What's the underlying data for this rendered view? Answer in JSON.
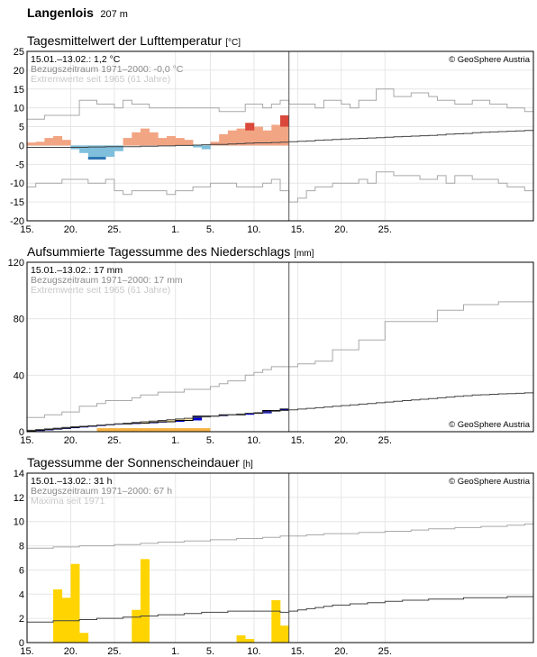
{
  "header": {
    "station": "Langenlois",
    "altitude": "207 m"
  },
  "charts": [
    {
      "title": "Tagesmittelwert der Lufttemperatur",
      "unit": "[°C]",
      "summary": "15.01.–13.02.: 1,2 °C",
      "reference": "Bezugszeitraum 1971–2000: -0,0 °C",
      "extremes": "Extremwerte seit 1965 (61 Jahre)",
      "copyright": "© GeoSphere Austria"
    },
    {
      "title": "Aufsummierte Tagessumme des Niederschlags",
      "unit": "[mm]",
      "summary": "15.01.–13.02.: 17 mm",
      "reference": "Bezugszeitraum 1971–2000: 17 mm",
      "extremes": "Extremwerte seit 1965 (61 Jahre)",
      "copyright": "© GeoSphere Austria"
    },
    {
      "title": "Tagessumme der Sonnenscheindauer",
      "unit": "[h]",
      "summary": "15.01.–13.02.: 31 h",
      "reference": "Bezugszeitraum 1971–2000: 67 h",
      "extremes": "Maxima seit 1971",
      "copyright": "© GeoSphere Austria"
    }
  ],
  "chart_data": [
    {
      "type": "bar",
      "title": "Tagesmittelwert der Lufttemperatur",
      "ylabel": "°C",
      "ylim": [
        -20,
        25
      ],
      "yticks": [
        -20,
        -15,
        -10,
        -5,
        0,
        5,
        10,
        15,
        20,
        25
      ],
      "xlim": [
        "15.01.",
        "14.03."
      ],
      "xticks": [
        "15.",
        "20.",
        "25.",
        "1.",
        "5.",
        "10.",
        "15.",
        "20.",
        "25."
      ],
      "grid": true,
      "today_marker": "14.02.",
      "observed_dates": [
        "15.01.",
        "16.01.",
        "17.01.",
        "18.01.",
        "19.01.",
        "20.01.",
        "21.01.",
        "22.01.",
        "23.01.",
        "24.01.",
        "25.01.",
        "26.01.",
        "27.01.",
        "28.01.",
        "29.01.",
        "30.01.",
        "31.01.",
        "01.02.",
        "02.02.",
        "03.02.",
        "04.02.",
        "05.02.",
        "06.02.",
        "07.02.",
        "08.02.",
        "09.02.",
        "10.02.",
        "11.02.",
        "12.02.",
        "13.02."
      ],
      "series": [
        {
          "name": "Tagesmittel",
          "values": [
            0.3,
            0.5,
            1.5,
            2.0,
            1.0,
            -1.5,
            -2.5,
            -4.0,
            -4.0,
            -4.0,
            -2.0,
            1.5,
            3.0,
            4.0,
            3.0,
            1.5,
            2.0,
            1.5,
            1.0,
            -0.5,
            -1.0,
            0.5,
            2.5,
            3.5,
            3.5,
            3.5,
            4.0,
            4.0,
            4.5,
            4.5
          ]
        },
        {
          "name": "Anomalie",
          "values": [
            0.8,
            1.0,
            2.0,
            2.5,
            1.5,
            -1.0,
            -2.0,
            -3.5,
            -3.5,
            -3.0,
            -1.5,
            2.0,
            3.5,
            4.5,
            3.5,
            2.0,
            2.5,
            2.0,
            1.5,
            -0.5,
            -1.0,
            1.0,
            3.0,
            4.0,
            4.5,
            6.0,
            5.0,
            4.0,
            5.5,
            8.0
          ]
        },
        {
          "name": "Mittel 1971–2000",
          "values": [
            -0.5,
            -0.5,
            -0.5,
            -0.5,
            -0.5,
            -0.5,
            -0.5,
            -0.4,
            -0.4,
            -0.3,
            -0.3,
            -0.3,
            -0.3,
            -0.2,
            -0.2,
            -0.1,
            -0.1,
            0.0,
            0.0,
            0.1,
            0.2,
            0.3,
            0.3,
            0.4,
            0.5,
            0.6,
            0.7,
            0.7,
            0.8,
            0.9,
            1.0,
            1.1,
            1.2,
            1.4,
            1.5,
            1.6,
            1.7,
            1.8,
            1.9,
            2.0,
            2.1,
            2.2,
            2.3,
            2.4,
            2.5,
            2.6,
            2.7,
            2.8,
            3.0,
            3.1,
            3.2,
            3.4,
            3.5,
            3.6,
            3.7,
            3.8,
            3.9,
            4.0
          ]
        },
        {
          "name": "Maximum",
          "values": [
            7,
            7,
            8,
            8,
            8,
            8,
            12,
            12,
            11,
            11,
            10,
            12,
            11,
            11,
            10,
            10,
            10,
            10,
            10,
            10,
            10,
            10,
            9,
            9,
            9,
            11,
            11,
            10,
            11,
            12,
            11,
            11,
            11,
            10,
            12,
            12,
            11,
            10,
            12,
            12,
            15,
            15,
            13,
            13,
            14,
            14,
            13,
            12,
            12,
            11,
            11,
            12,
            12,
            11,
            11,
            10,
            10,
            9
          ]
        },
        {
          "name": "Minimum",
          "values": [
            -11,
            -10,
            -10,
            -10,
            -9,
            -9,
            -9,
            -10,
            -10,
            -9,
            -12,
            -13,
            -12,
            -12,
            -12,
            -12,
            -13,
            -12,
            -12,
            -11,
            -11,
            -10,
            -10,
            -10,
            -11,
            -11,
            -11,
            -10,
            -9,
            -12,
            -15,
            -14,
            -12,
            -11,
            -11,
            -10,
            -10,
            -10,
            -9,
            -10,
            -7,
            -7,
            -8,
            -8,
            -8,
            -9,
            -9,
            -8,
            -10,
            -8,
            -8,
            -9,
            -9,
            -9,
            -10,
            -11,
            -11,
            -12
          ]
        }
      ]
    },
    {
      "type": "area",
      "title": "Aufsummierte Tagessumme des Niederschlags",
      "ylabel": "mm",
      "ylim": [
        0,
        120
      ],
      "yticks": [
        0,
        40,
        80,
        120
      ],
      "xlim": [
        "15.01.",
        "14.03."
      ],
      "xticks": [
        "15.",
        "20.",
        "25.",
        "1.",
        "5.",
        "10.",
        "15.",
        "20.",
        "25."
      ],
      "grid": true,
      "today_marker": "14.02.",
      "series": [
        {
          "name": "Summe 15.01.–13.02.",
          "values": [
            0.5,
            1,
            1.5,
            2,
            2.5,
            3,
            3.5,
            4,
            4.5,
            5,
            5.5,
            5.5,
            6,
            6,
            6.5,
            7,
            7,
            8,
            8,
            11,
            11,
            11,
            12,
            12,
            12,
            13,
            13,
            15,
            15,
            16,
            16,
            16.5,
            17,
            17,
            17,
            17,
            17
          ]
        },
        {
          "name": "Mittel 1971–2000",
          "values": [
            1,
            1.5,
            2,
            2.5,
            3,
            3.5,
            3.8,
            4.2,
            4.6,
            5,
            5.5,
            6,
            6.5,
            7,
            7.5,
            8,
            8.5,
            9,
            9.5,
            10,
            10.5,
            11,
            11.5,
            12,
            12.5,
            13,
            13.5,
            14,
            14.5,
            15,
            15.5,
            16,
            16.5,
            17,
            17.5,
            18,
            18.5,
            19,
            19.5,
            20,
            20.5,
            21,
            21.5,
            22,
            22.5,
            23,
            23.5,
            24,
            24.5,
            25,
            25.5,
            26,
            26.2,
            26.5,
            26.8,
            27,
            27.2,
            27.5
          ]
        },
        {
          "name": "Maximum",
          "values": [
            10,
            10,
            12,
            12,
            14,
            14,
            18,
            18,
            20,
            22,
            22,
            22,
            24,
            26,
            26,
            28,
            28,
            28,
            30,
            30,
            30,
            32,
            34,
            36,
            36,
            40,
            42,
            44,
            46,
            46,
            46,
            48,
            48,
            50,
            50,
            58,
            58,
            58,
            65,
            65,
            65,
            78,
            78,
            78,
            78,
            78,
            78,
            86,
            86,
            86,
            90,
            90,
            90,
            90,
            92,
            92,
            92,
            92
          ]
        }
      ]
    },
    {
      "type": "bar",
      "title": "Tagessumme der Sonnenscheindauer",
      "ylabel": "h",
      "ylim": [
        0,
        14
      ],
      "yticks": [
        0,
        2,
        4,
        6,
        8,
        10,
        12,
        14
      ],
      "xlim": [
        "15.01.",
        "14.03."
      ],
      "xticks": [
        "15.",
        "20.",
        "25.",
        "1.",
        "5.",
        "10.",
        "15.",
        "20.",
        "25."
      ],
      "grid": true,
      "today_marker": "14.02.",
      "series": [
        {
          "name": "Sonnenscheindauer",
          "values": [
            0,
            0,
            0,
            4.4,
            3.7,
            6.5,
            0.8,
            0,
            0,
            0,
            0,
            0,
            2.7,
            6.9,
            0,
            0,
            0,
            0,
            0,
            0,
            0,
            0,
            0,
            0,
            0.6,
            0.3,
            0,
            0,
            3.5,
            1.4
          ]
        },
        {
          "name": "Mittel 1971–2000",
          "values": [
            1.7,
            1.7,
            1.7,
            1.8,
            1.8,
            1.8,
            1.9,
            1.9,
            2.0,
            2.0,
            2.0,
            2.1,
            2.1,
            2.2,
            2.2,
            2.3,
            2.3,
            2.3,
            2.4,
            2.4,
            2.5,
            2.5,
            2.5,
            2.6,
            2.6,
            2.6,
            2.6,
            2.6,
            2.6,
            2.5,
            2.6,
            2.7,
            2.8,
            2.9,
            3.0,
            3.1,
            3.1,
            3.2,
            3.2,
            3.3,
            3.3,
            3.4,
            3.4,
            3.5,
            3.5,
            3.5,
            3.6,
            3.6,
            3.6,
            3.6,
            3.7,
            3.7,
            3.7,
            3.7,
            3.7,
            3.8,
            3.8,
            3.8
          ]
        },
        {
          "name": "Maximum",
          "values": [
            7.8,
            7.8,
            7.8,
            7.9,
            7.9,
            7.9,
            8.0,
            8.0,
            8.0,
            8.0,
            8.1,
            8.1,
            8.1,
            8.2,
            8.2,
            8.3,
            8.3,
            8.3,
            8.4,
            8.4,
            8.4,
            8.5,
            8.5,
            8.5,
            8.6,
            8.6,
            8.6,
            8.7,
            8.7,
            8.8,
            8.8,
            8.8,
            8.9,
            8.9,
            9.0,
            9.0,
            9.0,
            9.0,
            9.1,
            9.1,
            9.1,
            9.2,
            9.2,
            9.2,
            9.3,
            9.3,
            9.4,
            9.4,
            9.4,
            9.5,
            9.5,
            9.5,
            9.6,
            9.6,
            9.6,
            9.7,
            9.7,
            9.8
          ]
        }
      ]
    }
  ]
}
